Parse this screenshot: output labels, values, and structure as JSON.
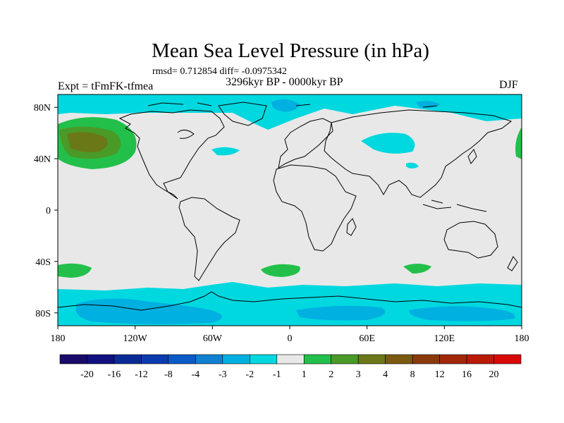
{
  "title": "Mean Sea Level Pressure (in hPa)",
  "stats": "rmsd= 0.712854  diff= -0.0975342",
  "period": "3296kyr BP - 0000kyr BP",
  "experiment": "Expt = tFmFK-tfmea",
  "season": "DJF",
  "colors": {
    "background_anomaly": "#e8e8e8",
    "negative_small": "#00d8e0",
    "negative_mid": "#00b0e0",
    "positive_small": "#22c04a",
    "positive_mid": "#4a9a28",
    "positive_high": "#6a7818",
    "coastline": "#000000"
  },
  "chart_data": {
    "type": "filled-contour-map",
    "variable": "Mean Sea Level Pressure anomaly",
    "units": "hPa",
    "x_axis": {
      "range": [
        -180,
        180
      ],
      "tick_values": [
        -180,
        -120,
        -60,
        0,
        60,
        120,
        180
      ],
      "tick_labels": [
        "180",
        "120W",
        "60W",
        "0",
        "60E",
        "120E",
        "180"
      ]
    },
    "y_axis": {
      "range": [
        -90,
        90
      ],
      "tick_values": [
        80,
        40,
        0,
        -40,
        -80
      ],
      "tick_labels": [
        "80N",
        "40N",
        "0",
        "40S",
        "80S"
      ]
    },
    "colorbar": {
      "colors": [
        "#1a0a6a",
        "#10107e",
        "#0a2a96",
        "#0a3cb0",
        "#0a5ac8",
        "#1080d0",
        "#00b0e0",
        "#00d8e0",
        "#e8e8e8",
        "#22c04a",
        "#4a9a28",
        "#6a7818",
        "#7a5a10",
        "#8a3a0a",
        "#a02808",
        "#b81a06",
        "#d80a08"
      ],
      "levels": [
        -20,
        -16,
        -12,
        -8,
        -4,
        -3,
        -2,
        -1,
        1,
        2,
        3,
        4,
        8,
        12,
        16,
        20
      ],
      "level_labels": [
        "-20",
        "-16",
        "-12",
        "-8",
        "-4",
        "-3",
        "-2",
        "-1",
        "1",
        "2",
        "3",
        "4",
        "8",
        "12",
        "16",
        "20"
      ]
    },
    "anomaly_regions": [
      {
        "name": "north-pacific-high",
        "center": [
          -150,
          45
        ],
        "peak": 4,
        "sign": "positive"
      },
      {
        "name": "southern-ocean-trough",
        "lat_band": [
          -90,
          -60
        ],
        "peak": -2,
        "sign": "negative"
      },
      {
        "name": "arctic-low",
        "lat_band": [
          70,
          90
        ],
        "peak": -2,
        "sign": "negative"
      },
      {
        "name": "central-asia-low",
        "center": [
          75,
          45
        ],
        "peak": -1,
        "sign": "negative"
      },
      {
        "name": "south-pacific-high",
        "center": [
          -170,
          -45
        ],
        "peak": 1,
        "sign": "positive"
      },
      {
        "name": "south-atlantic-high",
        "center": [
          -10,
          -45
        ],
        "peak": 1,
        "sign": "positive"
      },
      {
        "name": "south-indian-high",
        "center": [
          90,
          -45
        ],
        "peak": 1,
        "sign": "positive"
      }
    ]
  }
}
